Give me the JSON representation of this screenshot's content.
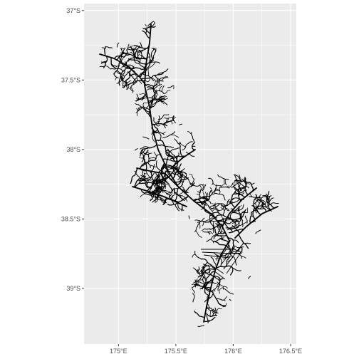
{
  "map": {
    "type": "river_network",
    "panel_background": "#ebebeb",
    "grid_color": "#ffffff",
    "line_color": "#000000",
    "x_ticks": [
      {
        "value": 175.0,
        "label": "175°E"
      },
      {
        "value": 175.5,
        "label": "175.5°E"
      },
      {
        "value": 176.0,
        "label": "176°E"
      },
      {
        "value": 176.5,
        "label": "176.5°E"
      }
    ],
    "y_ticks": [
      {
        "value": -37.0,
        "label": "37°S"
      },
      {
        "value": -37.5,
        "label": "37.5°S"
      },
      {
        "value": -38.0,
        "label": "38°S"
      },
      {
        "value": -38.5,
        "label": "38.5°S"
      },
      {
        "value": -39.0,
        "label": "39°S"
      }
    ],
    "xlim": [
      174.7,
      176.55
    ],
    "ylim": [
      -39.4,
      -36.95
    ]
  }
}
